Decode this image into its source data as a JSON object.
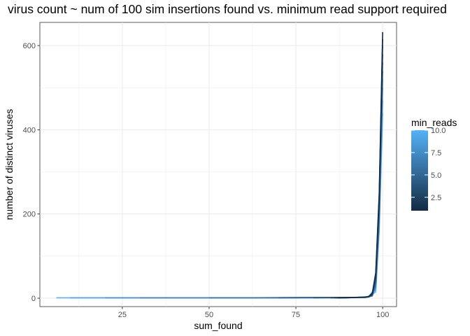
{
  "chart_data": {
    "type": "line",
    "title": "virus count ~ num of 100 sim insertions found vs. minimum read support required",
    "xlabel": "sum_found",
    "ylabel": "number of distinct viruses",
    "xlim": [
      1.25,
      104.0
    ],
    "ylim": [
      -20,
      655
    ],
    "xticks": [
      25,
      50,
      75,
      100
    ],
    "xtick_labels": [
      "25",
      "50",
      "75",
      "100"
    ],
    "yticks": [
      0,
      200,
      400,
      600
    ],
    "ytick_labels": [
      "0",
      "200",
      "400",
      "600"
    ],
    "grid": true,
    "legend": {
      "title": "min_reads",
      "placement": "right",
      "type": "colorbar",
      "range": [
        1,
        10
      ],
      "breaks": [
        2.5,
        5.0,
        7.5,
        10.0
      ],
      "break_labels": [
        "2.5",
        "5.0",
        "7.5",
        "10.0"
      ],
      "low_color": "#132b43",
      "high_color": "#56b1f7"
    },
    "series": [
      {
        "min_reads": 1,
        "x": [
          87,
          90,
          93,
          95,
          96,
          97,
          98,
          99,
          100
        ],
        "y": [
          1,
          1,
          2,
          2,
          4,
          12,
          60,
          250,
          632
        ]
      },
      {
        "min_reads": 2,
        "x": [
          86,
          89,
          92,
          95,
          96,
          97,
          98,
          99,
          100
        ],
        "y": [
          1,
          1,
          2,
          2,
          4,
          10,
          55,
          240,
          615
        ]
      },
      {
        "min_reads": 3,
        "x": [
          85,
          88,
          91,
          94,
          96,
          97,
          98,
          99,
          100
        ],
        "y": [
          1,
          1,
          2,
          2,
          3,
          9,
          50,
          230,
          600
        ]
      },
      {
        "min_reads": 4,
        "x": [
          80,
          85,
          90,
          93,
          96,
          97,
          98,
          99,
          100
        ],
        "y": [
          1,
          1,
          2,
          2,
          3,
          8,
          45,
          220,
          580
        ]
      },
      {
        "min_reads": 5,
        "x": [
          70,
          80,
          88,
          93,
          96,
          97,
          98,
          99,
          100
        ],
        "y": [
          1,
          1,
          2,
          2,
          3,
          7,
          40,
          210,
          560
        ]
      },
      {
        "min_reads": 6,
        "x": [
          50,
          70,
          85,
          92,
          95,
          97,
          98,
          99,
          100
        ],
        "y": [
          1,
          1,
          2,
          2,
          3,
          6,
          35,
          200,
          540
        ]
      },
      {
        "min_reads": 7,
        "x": [
          30,
          60,
          80,
          90,
          95,
          97,
          98,
          99,
          100
        ],
        "y": [
          1,
          1,
          2,
          2,
          2,
          5,
          30,
          190,
          520
        ]
      },
      {
        "min_reads": 8,
        "x": [
          20,
          50,
          75,
          88,
          94,
          96,
          98,
          99,
          100
        ],
        "y": [
          1,
          1,
          1,
          2,
          2,
          4,
          25,
          180,
          500
        ]
      },
      {
        "min_reads": 9,
        "x": [
          10,
          40,
          70,
          86,
          93,
          96,
          98,
          99,
          100
        ],
        "y": [
          1,
          1,
          1,
          2,
          2,
          4,
          20,
          170,
          470
        ]
      },
      {
        "min_reads": 10,
        "x": [
          6,
          30,
          60,
          85,
          92,
          96,
          98,
          99,
          100
        ],
        "y": [
          1,
          1,
          1,
          2,
          2,
          3,
          15,
          160,
          440
        ]
      }
    ]
  }
}
